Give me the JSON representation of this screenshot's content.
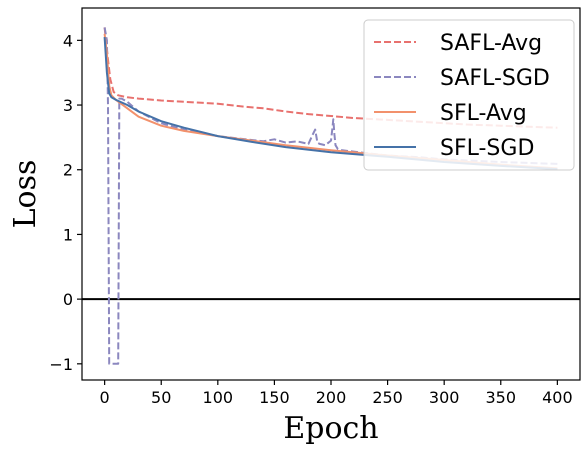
{
  "chart_data": {
    "type": "line",
    "title": "",
    "xlabel": "Epoch",
    "ylabel": "Loss",
    "xlim": [
      -20,
      420
    ],
    "ylim": [
      -1.25,
      4.5
    ],
    "xticks": [
      0,
      50,
      100,
      150,
      200,
      250,
      300,
      350,
      400
    ],
    "yticks": [
      -1,
      0,
      1,
      2,
      3,
      4
    ],
    "grid": false,
    "legend_position": "top-right",
    "reference_line": {
      "y": 0,
      "color": "#000000"
    },
    "series": [
      {
        "name": "SAFL-Avg",
        "color": "#e8716e",
        "dash": "dashed",
        "x": [
          0,
          3,
          5,
          8,
          12,
          20,
          30,
          50,
          70,
          100,
          120,
          140,
          160,
          180,
          200,
          220,
          250,
          280,
          300,
          320,
          350,
          380,
          400
        ],
        "y": [
          4.2,
          3.7,
          3.4,
          3.2,
          3.15,
          3.12,
          3.1,
          3.07,
          3.05,
          3.02,
          2.98,
          2.95,
          2.9,
          2.86,
          2.83,
          2.8,
          2.77,
          2.74,
          2.72,
          2.7,
          2.68,
          2.66,
          2.65
        ]
      },
      {
        "name": "SAFL-SGD",
        "color": "#8b87bf",
        "dash": "dashed",
        "x": [
          0,
          2,
          3,
          4,
          5,
          6,
          7,
          8,
          9,
          10,
          11,
          12,
          13,
          15,
          20,
          30,
          50,
          70,
          100,
          120,
          140,
          150,
          160,
          170,
          180,
          184,
          186,
          188,
          190,
          195,
          200,
          201,
          202,
          203,
          204,
          206,
          210,
          220,
          250,
          280,
          300,
          350,
          400
        ],
        "y": [
          4.2,
          4.0,
          3.0,
          -1.0,
          -1.0,
          -1.0,
          -1.0,
          -1.0,
          -1.0,
          -1.0,
          -1.0,
          -1.0,
          3.1,
          3.1,
          3.05,
          2.9,
          2.72,
          2.62,
          2.52,
          2.48,
          2.44,
          2.47,
          2.42,
          2.44,
          2.4,
          2.55,
          2.62,
          2.42,
          2.4,
          2.38,
          2.45,
          2.6,
          2.78,
          2.55,
          2.38,
          2.32,
          2.3,
          2.28,
          2.22,
          2.19,
          2.16,
          2.12,
          2.09
        ]
      },
      {
        "name": "SFL-Avg",
        "color": "#f2916c",
        "dash": "solid",
        "x": [
          0,
          2,
          4,
          6,
          10,
          20,
          30,
          50,
          70,
          100,
          130,
          160,
          200,
          250,
          300,
          350,
          400
        ],
        "y": [
          4.1,
          3.8,
          3.3,
          3.15,
          3.08,
          2.95,
          2.82,
          2.68,
          2.6,
          2.52,
          2.45,
          2.38,
          2.3,
          2.22,
          2.15,
          2.08,
          2.02
        ]
      },
      {
        "name": "SFL-SGD",
        "color": "#4572a8",
        "dash": "solid",
        "x": [
          0,
          2,
          4,
          6,
          10,
          20,
          30,
          50,
          70,
          100,
          130,
          160,
          200,
          250,
          300,
          350,
          400
        ],
        "y": [
          4.05,
          3.5,
          3.18,
          3.12,
          3.08,
          3.0,
          2.9,
          2.75,
          2.65,
          2.52,
          2.43,
          2.35,
          2.27,
          2.2,
          2.12,
          2.06,
          2.01
        ]
      }
    ]
  }
}
